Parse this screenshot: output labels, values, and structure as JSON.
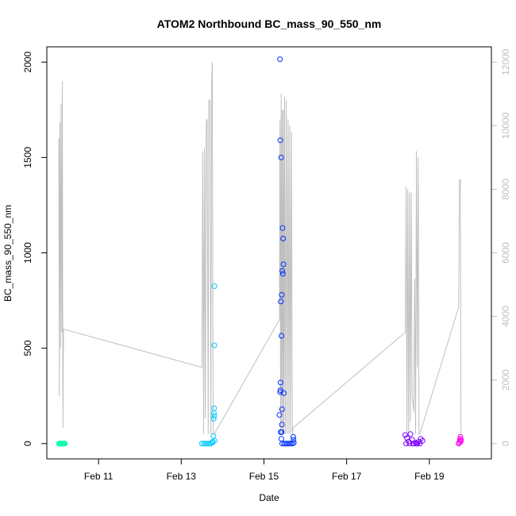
{
  "chart_data": {
    "type": "scatter",
    "title": "ATOM2 Northbound BC_mass_90_550_nm",
    "xlabel": "Date",
    "ylabel": "BC_mass_90_550_nm",
    "x_ticks": [
      "Feb 11",
      "Feb 13",
      "Feb 15",
      "Feb 17",
      "Feb 19"
    ],
    "x_tick_values": [
      "2017-02-11",
      "2017-02-13",
      "2017-02-15",
      "2017-02-17",
      "2017-02-19"
    ],
    "xlim": [
      "2017-02-09 18:00",
      "2017-02-20 12:00"
    ],
    "ylim": [
      -80,
      2080
    ],
    "y_ticks": [
      0,
      500,
      1000,
      1500,
      2000
    ],
    "y2lim": [
      -480,
      12480
    ],
    "y2_ticks": [
      0,
      2000,
      4000,
      6000,
      8000,
      10000,
      12000
    ],
    "grid": false,
    "colors": {
      "frame": "#000000",
      "altitude_line": "#bfbfbf",
      "right_axis": "#bfbfbf"
    },
    "series": [
      {
        "color": "#00ffaa",
        "points": [
          [
            "2017-02-10 01:00",
            0
          ],
          [
            "2017-02-10 01:30",
            0
          ],
          [
            "2017-02-10 02:00",
            0
          ],
          [
            "2017-02-10 02:30",
            0
          ],
          [
            "2017-02-10 03:00",
            0
          ],
          [
            "2017-02-10 03:30",
            0
          ],
          [
            "2017-02-10 04:00",
            0
          ],
          [
            "2017-02-10 04:30",
            0
          ]
        ]
      },
      {
        "color": "#00c8ff",
        "points": [
          [
            "2017-02-13 12:00",
            0
          ],
          [
            "2017-02-13 13:00",
            0
          ],
          [
            "2017-02-13 14:00",
            0
          ],
          [
            "2017-02-13 15:00",
            0
          ],
          [
            "2017-02-13 16:00",
            0
          ],
          [
            "2017-02-13 17:00",
            0
          ],
          [
            "2017-02-13 18:00",
            5
          ],
          [
            "2017-02-13 18:20",
            10
          ],
          [
            "2017-02-13 18:40",
            40
          ],
          [
            "2017-02-13 18:50",
            130
          ],
          [
            "2017-02-13 19:00",
            160
          ],
          [
            "2017-02-13 19:05",
            185
          ],
          [
            "2017-02-13 19:10",
            145
          ],
          [
            "2017-02-13 19:12",
            515
          ],
          [
            "2017-02-13 19:15",
            825
          ],
          [
            "2017-02-13 19:20",
            15
          ]
        ]
      },
      {
        "color": "#0030ff",
        "points": [
          [
            "2017-02-15 09:00",
            150
          ],
          [
            "2017-02-15 09:20",
            2015
          ],
          [
            "2017-02-15 09:30",
            1590
          ],
          [
            "2017-02-15 09:40",
            320
          ],
          [
            "2017-02-15 09:50",
            745
          ],
          [
            "2017-02-15 10:00",
            1500
          ],
          [
            "2017-02-15 10:10",
            565
          ],
          [
            "2017-02-15 10:20",
            780
          ],
          [
            "2017-02-15 10:30",
            180
          ],
          [
            "2017-02-15 10:40",
            905
          ],
          [
            "2017-02-15 10:50",
            1130
          ],
          [
            "2017-02-15 11:00",
            890
          ],
          [
            "2017-02-15 11:10",
            1075
          ],
          [
            "2017-02-15 11:20",
            940
          ],
          [
            "2017-02-15 11:30",
            265
          ],
          [
            "2017-02-15 09:25",
            270
          ],
          [
            "2017-02-15 09:35",
            280
          ],
          [
            "2017-02-15 09:45",
            60
          ],
          [
            "2017-02-15 10:05",
            25
          ],
          [
            "2017-02-15 10:15",
            60
          ],
          [
            "2017-02-15 10:25",
            100
          ],
          [
            "2017-02-15 10:35",
            0
          ],
          [
            "2017-02-15 11:40",
            0
          ],
          [
            "2017-02-15 12:30",
            0
          ],
          [
            "2017-02-15 13:30",
            0
          ],
          [
            "2017-02-15 14:30",
            0
          ],
          [
            "2017-02-15 15:30",
            0
          ],
          [
            "2017-02-15 16:30",
            0
          ],
          [
            "2017-02-15 17:00",
            35
          ],
          [
            "2017-02-15 17:10",
            20
          ],
          [
            "2017-02-15 17:20",
            5
          ]
        ]
      },
      {
        "color": "#7a00ff",
        "points": [
          [
            "2017-02-18 10:00",
            45
          ],
          [
            "2017-02-18 11:00",
            30
          ],
          [
            "2017-02-18 12:00",
            10
          ],
          [
            "2017-02-18 13:00",
            50
          ],
          [
            "2017-02-18 14:00",
            20
          ],
          [
            "2017-02-18 15:00",
            0
          ],
          [
            "2017-02-18 16:00",
            5
          ],
          [
            "2017-02-18 17:00",
            0
          ],
          [
            "2017-02-18 18:00",
            10
          ],
          [
            "2017-02-18 19:00",
            25
          ],
          [
            "2017-02-18 20:00",
            15
          ],
          [
            "2017-02-18 10:30",
            0
          ],
          [
            "2017-02-18 12:30",
            0
          ],
          [
            "2017-02-18 14:30",
            0
          ],
          [
            "2017-02-18 16:30",
            0
          ],
          [
            "2017-02-18 18:30",
            0
          ]
        ]
      },
      {
        "color": "#ff00ee",
        "points": [
          [
            "2017-02-19 17:00",
            0
          ],
          [
            "2017-02-19 17:20",
            5
          ],
          [
            "2017-02-19 17:40",
            15
          ],
          [
            "2017-02-19 17:50",
            25
          ],
          [
            "2017-02-19 18:00",
            35
          ],
          [
            "2017-02-19 18:10",
            10
          ],
          [
            "2017-02-19 18:20",
            20
          ]
        ]
      }
    ],
    "altitude_line": [
      [
        "2017-02-10 01:00",
        9600
      ],
      [
        "2017-02-10 01:15",
        1500
      ],
      [
        "2017-02-10 01:30",
        10100
      ],
      [
        "2017-02-10 02:00",
        3000
      ],
      [
        "2017-02-10 02:15",
        10700
      ],
      [
        "2017-02-10 02:45",
        3500
      ],
      [
        "2017-02-10 03:00",
        11400
      ],
      [
        "2017-02-10 03:20",
        500
      ],
      [
        "2017-02-10 03:40",
        3600
      ],
      [
        "2017-02-13 12:00",
        2400
      ],
      [
        "2017-02-13 12:30",
        9200
      ],
      [
        "2017-02-13 13:00",
        300
      ],
      [
        "2017-02-13 13:30",
        9300
      ],
      [
        "2017-02-13 14:00",
        800
      ],
      [
        "2017-02-13 14:30",
        10100
      ],
      [
        "2017-02-13 15:00",
        10200
      ],
      [
        "2017-02-13 15:40",
        300
      ],
      [
        "2017-02-13 16:00",
        10800
      ],
      [
        "2017-02-13 16:40",
        10800
      ],
      [
        "2017-02-13 17:10",
        300
      ],
      [
        "2017-02-13 17:40",
        11300
      ],
      [
        "2017-02-13 18:00",
        12000
      ],
      [
        "2017-02-13 18:30",
        300
      ],
      [
        "2017-02-13 19:10",
        300
      ],
      [
        "2017-02-15 09:00",
        3900
      ],
      [
        "2017-02-15 09:20",
        10200
      ],
      [
        "2017-02-15 09:40",
        300
      ],
      [
        "2017-02-15 10:00",
        11000
      ],
      [
        "2017-02-15 10:20",
        300
      ],
      [
        "2017-02-15 10:40",
        10500
      ],
      [
        "2017-02-15 11:00",
        300
      ],
      [
        "2017-02-15 11:20",
        10500
      ],
      [
        "2017-02-15 11:40",
        300
      ],
      [
        "2017-02-15 12:00",
        10900
      ],
      [
        "2017-02-15 12:30",
        300
      ],
      [
        "2017-02-15 13:00",
        10800
      ],
      [
        "2017-02-15 13:30",
        300
      ],
      [
        "2017-02-15 14:00",
        10200
      ],
      [
        "2017-02-15 14:30",
        300
      ],
      [
        "2017-02-15 15:00",
        10000
      ],
      [
        "2017-02-15 15:30",
        300
      ],
      [
        "2017-02-15 16:00",
        9800
      ],
      [
        "2017-02-15 16:30",
        300
      ],
      [
        "2017-02-15 17:00",
        500
      ],
      [
        "2017-02-18 10:00",
        3500
      ],
      [
        "2017-02-18 10:30",
        8100
      ],
      [
        "2017-02-18 11:00",
        300
      ],
      [
        "2017-02-18 11:30",
        8000
      ],
      [
        "2017-02-18 12:00",
        300
      ],
      [
        "2017-02-18 12:30",
        7900
      ],
      [
        "2017-02-18 13:00",
        700
      ],
      [
        "2017-02-18 13:30",
        7900
      ],
      [
        "2017-02-18 14:00",
        1500
      ],
      [
        "2017-02-18 15:00",
        1000
      ],
      [
        "2017-02-18 15:30",
        5200
      ],
      [
        "2017-02-18 16:00",
        300
      ],
      [
        "2017-02-18 16:30",
        9200
      ],
      [
        "2017-02-18 17:00",
        2400
      ],
      [
        "2017-02-18 17:30",
        9000
      ],
      [
        "2017-02-18 18:00",
        300
      ],
      [
        "2017-02-18 18:30",
        300
      ],
      [
        "2017-02-19 17:00",
        4300
      ],
      [
        "2017-02-19 17:30",
        8300
      ],
      [
        "2017-02-19 18:00",
        8300
      ],
      [
        "2017-02-19 18:20",
        300
      ]
    ]
  }
}
